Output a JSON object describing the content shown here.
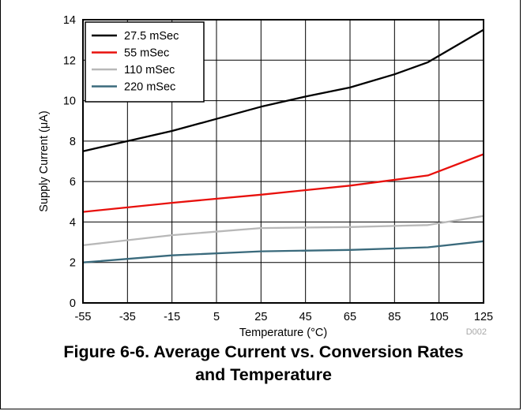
{
  "chart_data": {
    "type": "line",
    "xlabel": "Temperature (°C)",
    "ylabel": "Supply Current (μA)",
    "xlim": [
      -55,
      125
    ],
    "ylim": [
      0,
      14
    ],
    "xticks": [
      -55,
      -35,
      -15,
      5,
      25,
      45,
      65,
      85,
      105,
      125
    ],
    "yticks": [
      0,
      2,
      4,
      6,
      8,
      10,
      12,
      14
    ],
    "grid": true,
    "legend_position": "top-left",
    "series": [
      {
        "name": "27.5 mSec",
        "color": "#000000",
        "x": [
          -55,
          -35,
          -15,
          5,
          25,
          45,
          65,
          85,
          100,
          125
        ],
        "y": [
          7.5,
          8.0,
          8.5,
          9.1,
          9.7,
          10.2,
          10.65,
          11.3,
          11.9,
          13.5
        ]
      },
      {
        "name": "55 mSec",
        "color": "#e8100c",
        "x": [
          -55,
          -15,
          25,
          65,
          100,
          125
        ],
        "y": [
          4.5,
          4.95,
          5.35,
          5.8,
          6.3,
          7.35
        ]
      },
      {
        "name": "110 mSec",
        "color": "#b8b8b8",
        "x": [
          -55,
          -15,
          25,
          65,
          100,
          125
        ],
        "y": [
          2.85,
          3.35,
          3.7,
          3.75,
          3.85,
          4.3
        ]
      },
      {
        "name": "220 mSec",
        "color": "#3a6a7c",
        "x": [
          -55,
          -15,
          25,
          65,
          100,
          125
        ],
        "y": [
          2.0,
          2.35,
          2.55,
          2.62,
          2.75,
          3.05
        ]
      }
    ],
    "watermark": "D002"
  },
  "caption": {
    "line1": "Figure 6-6. Average Current vs. Conversion Rates",
    "line2": "and Temperature"
  }
}
